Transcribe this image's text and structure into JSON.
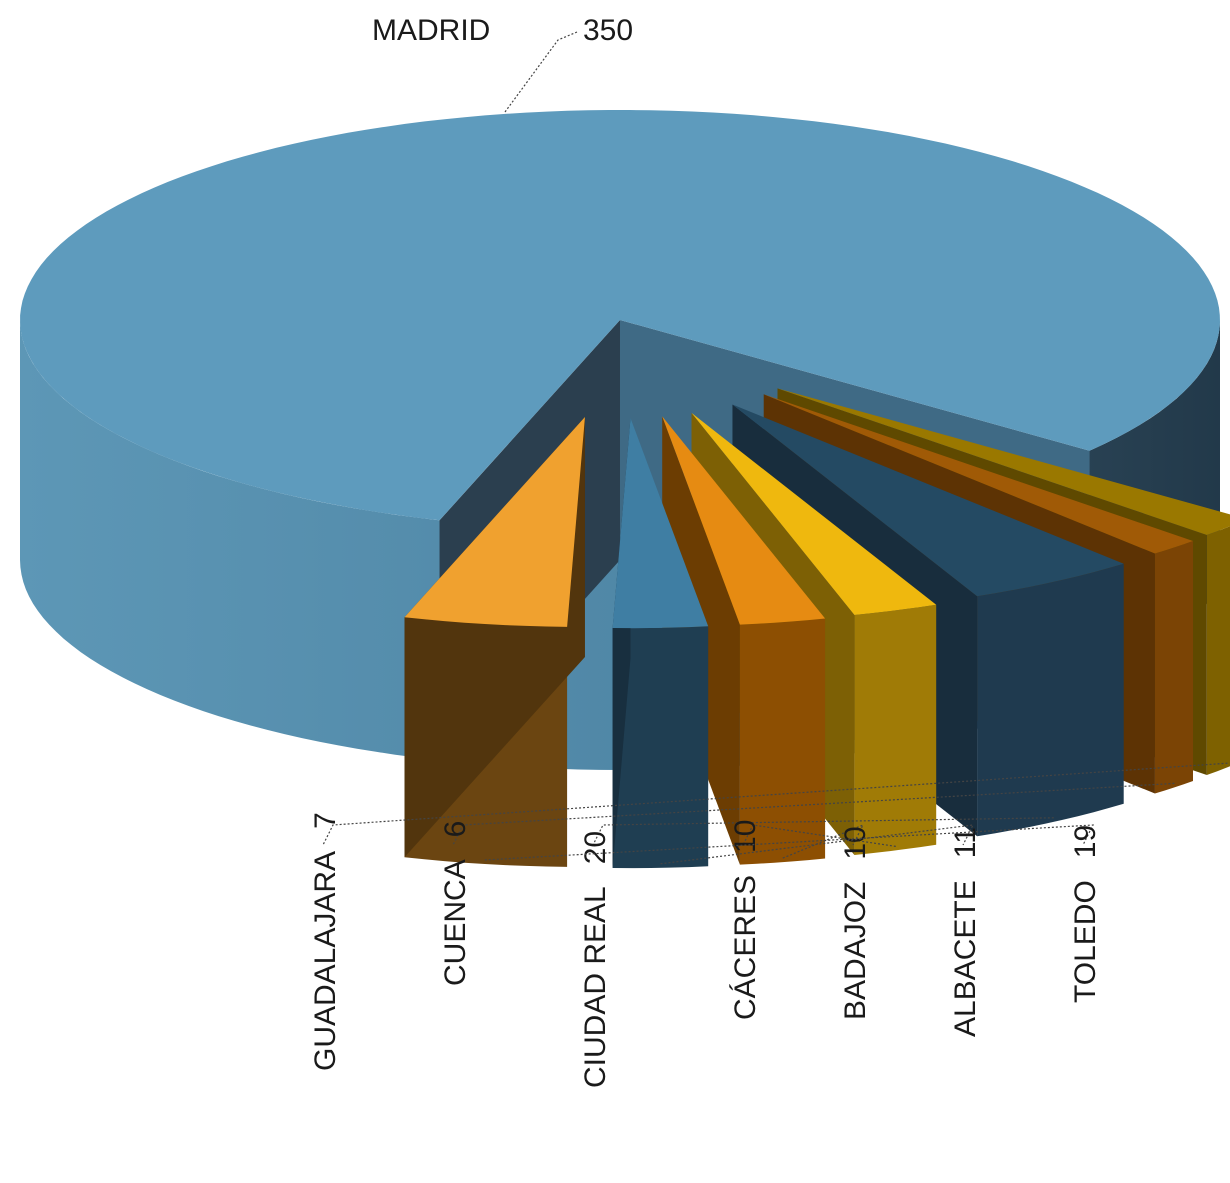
{
  "chart_data": {
    "type": "pie",
    "title": "",
    "style": "3d-exploded",
    "slices": [
      {
        "label": "MADRID",
        "value": 350,
        "top_color": "#5e9bbd",
        "side_color": "#4f87a8",
        "dark_side": "#2b3f4f"
      },
      {
        "label": "GUADALAJARA",
        "value": 7,
        "top_color": "#9a7800",
        "side_color": "#7e6100",
        "dark_side": "#5f4900"
      },
      {
        "label": "CUENCA",
        "value": 6,
        "top_color": "#a05a06",
        "side_color": "#7b4405",
        "dark_side": "#5d3304"
      },
      {
        "label": "CIUDAD REAL",
        "value": 20,
        "top_color": "#244a63",
        "side_color": "#1f3a4f",
        "dark_side": "#182d3d"
      },
      {
        "label": "CÁCERES",
        "value": 10,
        "top_color": "#efb80e",
        "side_color": "#a07b06",
        "dark_side": "#7d6005"
      },
      {
        "label": "BADAJOZ",
        "value": 10,
        "top_color": "#e68b12",
        "side_color": "#8d4f02",
        "dark_side": "#6c3d02"
      },
      {
        "label": "ALBACETE",
        "value": 11,
        "top_color": "#3f7ea3",
        "side_color": "#1f3e52",
        "dark_side": "#182f3f"
      },
      {
        "label": "TOLEDO",
        "value": 19,
        "top_color": "#f0a12f",
        "side_color": "#6b4511",
        "dark_side": "#52350d"
      }
    ]
  }
}
